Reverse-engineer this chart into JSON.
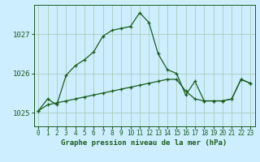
{
  "title": "Graphe pression niveau de la mer (hPa)",
  "background_color": "#cceeff",
  "grid_color": "#aaccbb",
  "line_color": "#1a5c1a",
  "xlim": [
    -0.5,
    23.5
  ],
  "ylim": [
    1024.65,
    1027.75
  ],
  "yticks": [
    1025,
    1026,
    1027
  ],
  "xticks": [
    0,
    1,
    2,
    3,
    4,
    5,
    6,
    7,
    8,
    9,
    10,
    11,
    12,
    13,
    14,
    15,
    16,
    17,
    18,
    19,
    20,
    21,
    22,
    23
  ],
  "series1_x": [
    0,
    1,
    2,
    3,
    4,
    5,
    6,
    7,
    8,
    9,
    10,
    11,
    12,
    13,
    14,
    15,
    16,
    17,
    18,
    19,
    20,
    21,
    22,
    23
  ],
  "series1_y": [
    1025.05,
    1025.35,
    1025.2,
    1025.95,
    1026.2,
    1026.35,
    1026.55,
    1026.95,
    1027.1,
    1027.15,
    1027.2,
    1027.55,
    1027.3,
    1026.5,
    1026.1,
    1026.0,
    1025.45,
    1025.8,
    1025.3,
    1025.3,
    1025.3,
    1025.35,
    1025.85,
    1025.75
  ],
  "series2_x": [
    0,
    1,
    2,
    3,
    4,
    5,
    6,
    7,
    8,
    9,
    10,
    11,
    12,
    13,
    14,
    15,
    16,
    17,
    18,
    19,
    20,
    21,
    22,
    23
  ],
  "series2_y": [
    1025.05,
    1025.2,
    1025.25,
    1025.3,
    1025.35,
    1025.4,
    1025.45,
    1025.5,
    1025.55,
    1025.6,
    1025.65,
    1025.7,
    1025.75,
    1025.8,
    1025.85,
    1025.85,
    1025.55,
    1025.35,
    1025.3,
    1025.3,
    1025.3,
    1025.35,
    1025.85,
    1025.75
  ],
  "xlabel_fontsize": 6.5,
  "ytick_fontsize": 6.5,
  "xtick_fontsize": 5.5,
  "linewidth": 0.9,
  "markersize": 3.5
}
